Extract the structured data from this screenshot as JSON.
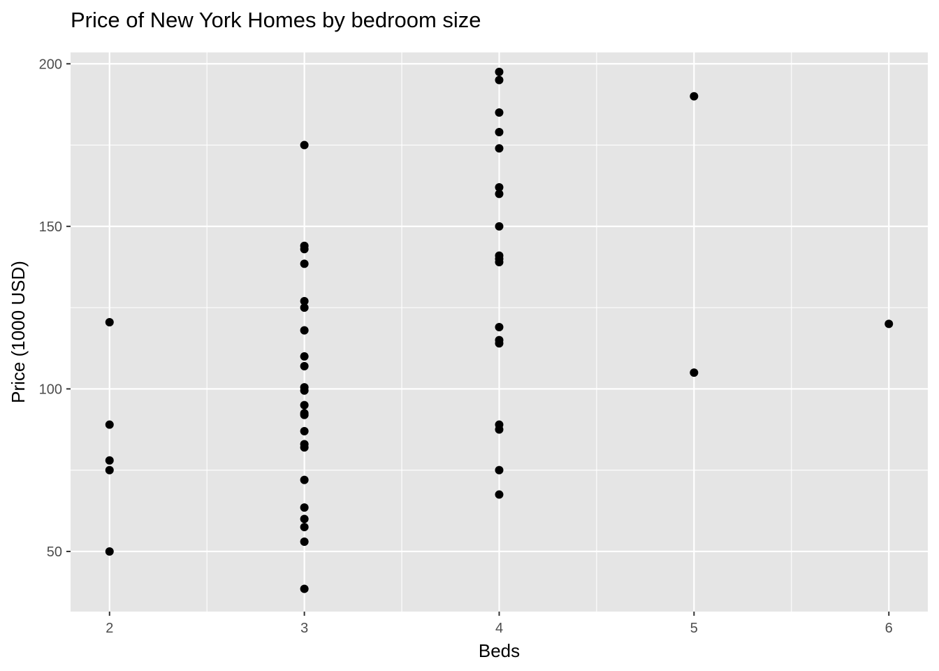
{
  "chart_data": {
    "type": "scatter",
    "title": "Price of New York Homes by bedroom size",
    "xlabel": "Beds",
    "ylabel": "Price (1000 USD)",
    "xlim": [
      1.8,
      6.2
    ],
    "ylim": [
      31.5,
      203.5
    ],
    "x_ticks": [
      2,
      3,
      4,
      5,
      6
    ],
    "y_ticks": [
      50,
      100,
      150,
      200
    ],
    "grid": true,
    "legend": "none",
    "colors": {
      "panel": "#e5e5e5",
      "grid": "#ffffff",
      "point": "#000000",
      "tick_text": "#4d4d4d"
    },
    "points": [
      {
        "x": 2,
        "y": 120.5
      },
      {
        "x": 2,
        "y": 89
      },
      {
        "x": 2,
        "y": 78
      },
      {
        "x": 2,
        "y": 75
      },
      {
        "x": 2,
        "y": 50
      },
      {
        "x": 3,
        "y": 175
      },
      {
        "x": 3,
        "y": 144
      },
      {
        "x": 3,
        "y": 143
      },
      {
        "x": 3,
        "y": 138.5
      },
      {
        "x": 3,
        "y": 127
      },
      {
        "x": 3,
        "y": 125
      },
      {
        "x": 3,
        "y": 118
      },
      {
        "x": 3,
        "y": 110
      },
      {
        "x": 3,
        "y": 107
      },
      {
        "x": 3,
        "y": 100.5
      },
      {
        "x": 3,
        "y": 99.5
      },
      {
        "x": 3,
        "y": 95
      },
      {
        "x": 3,
        "y": 92.5
      },
      {
        "x": 3,
        "y": 92
      },
      {
        "x": 3,
        "y": 87
      },
      {
        "x": 3,
        "y": 83
      },
      {
        "x": 3,
        "y": 82
      },
      {
        "x": 3,
        "y": 72
      },
      {
        "x": 3,
        "y": 63.5
      },
      {
        "x": 3,
        "y": 60
      },
      {
        "x": 3,
        "y": 57.5
      },
      {
        "x": 3,
        "y": 53
      },
      {
        "x": 3,
        "y": 38.5
      },
      {
        "x": 4,
        "y": 197.5
      },
      {
        "x": 4,
        "y": 195
      },
      {
        "x": 4,
        "y": 185
      },
      {
        "x": 4,
        "y": 179
      },
      {
        "x": 4,
        "y": 174
      },
      {
        "x": 4,
        "y": 162
      },
      {
        "x": 4,
        "y": 160
      },
      {
        "x": 4,
        "y": 150
      },
      {
        "x": 4,
        "y": 141
      },
      {
        "x": 4,
        "y": 140
      },
      {
        "x": 4,
        "y": 139
      },
      {
        "x": 4,
        "y": 119
      },
      {
        "x": 4,
        "y": 115
      },
      {
        "x": 4,
        "y": 114
      },
      {
        "x": 4,
        "y": 89
      },
      {
        "x": 4,
        "y": 87.5
      },
      {
        "x": 4,
        "y": 75
      },
      {
        "x": 4,
        "y": 67.5
      },
      {
        "x": 5,
        "y": 190
      },
      {
        "x": 5,
        "y": 105
      },
      {
        "x": 6,
        "y": 120
      }
    ]
  }
}
